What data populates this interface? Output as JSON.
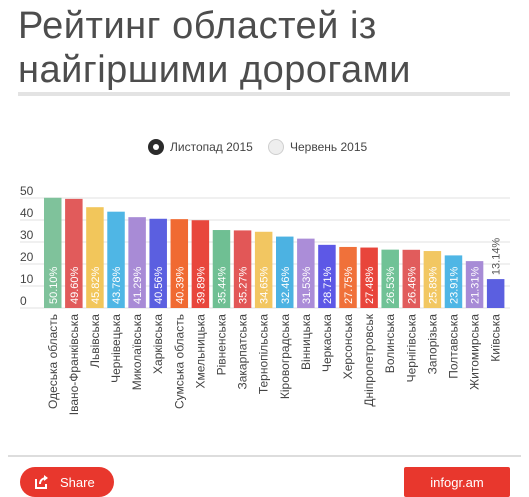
{
  "title": "Рейтинг областей із найгіршими дорогами",
  "legend": {
    "active_label": "Листопад 2015",
    "inactive_label": "Червень 2015"
  },
  "footer": {
    "share_label": "Share",
    "brand": "infogr.am"
  },
  "colors": {
    "title": "#4d4d4d",
    "accent": "#e8372d",
    "grid": "#e0e0e0",
    "label": "#444444"
  },
  "chart_data": {
    "type": "bar",
    "title": "Рейтинг областей із найгіршими дорогами",
    "series": [
      {
        "name": "Листопад 2015",
        "values": [
          50.1,
          49.6,
          45.82,
          43.78,
          41.29,
          40.56,
          40.39,
          39.89,
          35.44,
          35.27,
          34.65,
          32.46,
          31.53,
          28.71,
          27.75,
          27.48,
          26.53,
          26.46,
          25.89,
          23.91,
          21.31,
          13.14
        ]
      }
    ],
    "categories": [
      "Одеська область",
      "Івано-Франківська",
      "Львівська",
      "Чернівецька",
      "Миколаївська",
      "Харківська",
      "Сумська область",
      "Хмельницька",
      "Рівненська",
      "Закарпатська",
      "Тернопільська",
      "Кіровоградська",
      "Вінницька",
      "Черкаська",
      "Херсонська",
      "Дніпропетровськ",
      "Волинська",
      "Чернігівська",
      "Запорізька",
      "Полтавська",
      "Житомирська",
      "Київська"
    ],
    "value_labels": [
      "50.10%",
      "49.60%",
      "45.82%",
      "43.78%",
      "41.29%",
      "40.56%",
      "40.39%",
      "39.89%",
      "35.44%",
      "35.27%",
      "34.65%",
      "32.46%",
      "31.53%",
      "28.71%",
      "27.75%",
      "27.48%",
      "26.53%",
      "26.46%",
      "25.89%",
      "23.91%",
      "21.31%",
      "13.14%"
    ],
    "bar_colors": [
      "#7fc29b",
      "#e15b5b",
      "#f2c65b",
      "#4fb6e5",
      "#a88bd6",
      "#5b5fe0",
      "#f06a32",
      "#e8463c",
      "#6fbf93",
      "#e25757",
      "#f2c661",
      "#4cb2e2",
      "#ab8dd8",
      "#5d58e6",
      "#f0713a",
      "#e8453b",
      "#70c296",
      "#e15c5c",
      "#f2c762",
      "#4fb6e5",
      "#a78bd6",
      "#5b5fe0"
    ],
    "yticks": [
      0,
      10,
      20,
      30,
      40,
      50
    ],
    "ylim": [
      0,
      50
    ],
    "grid": true,
    "legend_position": "top-center"
  }
}
